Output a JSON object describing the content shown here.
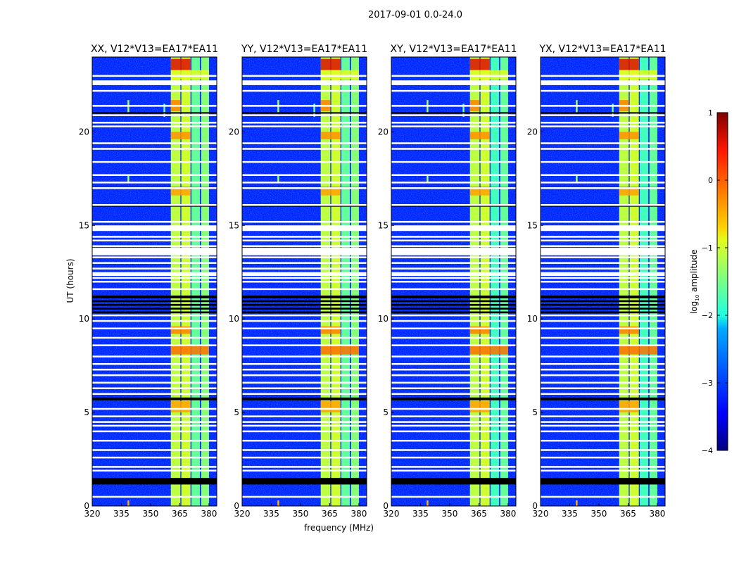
{
  "chart_data": {
    "type": "heatmap",
    "title": "2017-09-01 0.0-24.0",
    "xlabel": "frequency (MHz)",
    "ylabel": "UT (hours)",
    "xlim": [
      320,
      384
    ],
    "ylim": [
      0,
      24
    ],
    "xticks": [
      320,
      335,
      350,
      365,
      380
    ],
    "yticks": [
      0,
      5,
      10,
      15,
      20
    ],
    "colorbar": {
      "label": "log10 amplitude",
      "label_main": "log",
      "label_sub": "10",
      "label_rest": " amplitude",
      "range": [
        -4,
        1
      ],
      "ticks": [
        1,
        0,
        -1,
        -2,
        -3,
        -4
      ],
      "tick_labels": [
        "1",
        "0",
        "−1",
        "−2",
        "−3",
        "−4"
      ],
      "colormap": "jet"
    },
    "background_level": -3.2,
    "bands": [
      {
        "f0": 360.4,
        "f1": 365.3,
        "level": -1.1
      },
      {
        "f0": 365.8,
        "f1": 370.5,
        "level": -1.0
      },
      {
        "f0": 371.0,
        "f1": 375.3,
        "level": -1.6
      },
      {
        "f0": 376.0,
        "f1": 380.0,
        "level": -1.4
      }
    ],
    "flagged_white_hours": [
      0.5,
      1.9,
      2.1,
      2.6,
      3.0,
      3.5,
      4.0,
      4.3,
      4.5,
      4.8,
      5.2,
      6.0,
      6.3,
      6.6,
      7.0,
      7.3,
      7.6,
      8.0,
      8.6,
      9.0,
      9.5,
      9.9,
      10.2,
      11.6,
      12.0,
      12.2,
      12.4,
      12.7,
      13.0,
      13.3,
      13.6,
      13.9,
      14.2,
      14.4,
      15.2,
      16.1,
      17.0,
      17.3,
      17.7,
      18.4,
      19.1,
      19.4,
      20.3,
      20.5,
      20.9,
      21.4,
      22.2,
      22.6,
      23.0
    ],
    "flagged_white_ranges": [
      [
        13.4,
        13.8
      ],
      [
        14.7,
        15.0
      ],
      [
        22.5,
        22.75
      ],
      [
        12.3,
        12.5
      ]
    ],
    "flagged_black_ranges": [
      [
        1.15,
        1.5
      ],
      [
        5.65,
        5.8
      ],
      [
        10.3,
        10.4
      ],
      [
        10.5,
        10.6
      ],
      [
        10.7,
        10.8
      ],
      [
        10.9,
        11.0
      ],
      [
        11.1,
        11.25
      ],
      [
        16.0,
        16.1
      ],
      [
        17.0,
        17.05
      ],
      [
        21.0,
        21.05
      ]
    ],
    "hotspots": [
      {
        "t0": 23.3,
        "t1": 23.9,
        "f0": 360.4,
        "f1": 370.5,
        "level": 0.6
      },
      {
        "t0": 21.1,
        "t1": 21.7,
        "f0": 360.4,
        "f1": 365.3,
        "level": -0.2
      },
      {
        "t0": 19.6,
        "t1": 20.0,
        "f0": 360.4,
        "f1": 370.5,
        "level": -0.3
      },
      {
        "t0": 16.6,
        "t1": 17.0,
        "f0": 360.4,
        "f1": 370.5,
        "level": -0.4
      },
      {
        "t0": 9.2,
        "t1": 9.6,
        "f0": 360.4,
        "f1": 370.5,
        "level": -0.2
      },
      {
        "t0": 8.1,
        "t1": 8.6,
        "f0": 360.4,
        "f1": 380.0,
        "level": -0.1
      },
      {
        "t0": 5.0,
        "t1": 5.6,
        "f0": 360.4,
        "f1": 370.5,
        "level": -0.4
      },
      {
        "t0": 22.8,
        "t1": 23.3,
        "f0": 360.4,
        "f1": 380.0,
        "level": -0.9
      }
    ],
    "lines": [
      {
        "f": 338.5,
        "t0": 21.0,
        "t1": 21.7,
        "level": -1.2
      },
      {
        "f": 357,
        "t0": 20.8,
        "t1": 21.5,
        "level": -1.5
      },
      {
        "f": 338.5,
        "t0": 17.3,
        "t1": 17.7,
        "level": -1.2
      },
      {
        "f": 338.5,
        "t0": 0.0,
        "t1": 0.3,
        "level": -0.5
      }
    ],
    "panels": [
      {
        "title": "XX, V12*V13=EA17*EA11"
      },
      {
        "title": "YY, V12*V13=EA17*EA11"
      },
      {
        "title": "XY, V12*V13=EA17*EA11"
      },
      {
        "title": "YX, V12*V13=EA17*EA11"
      }
    ]
  }
}
